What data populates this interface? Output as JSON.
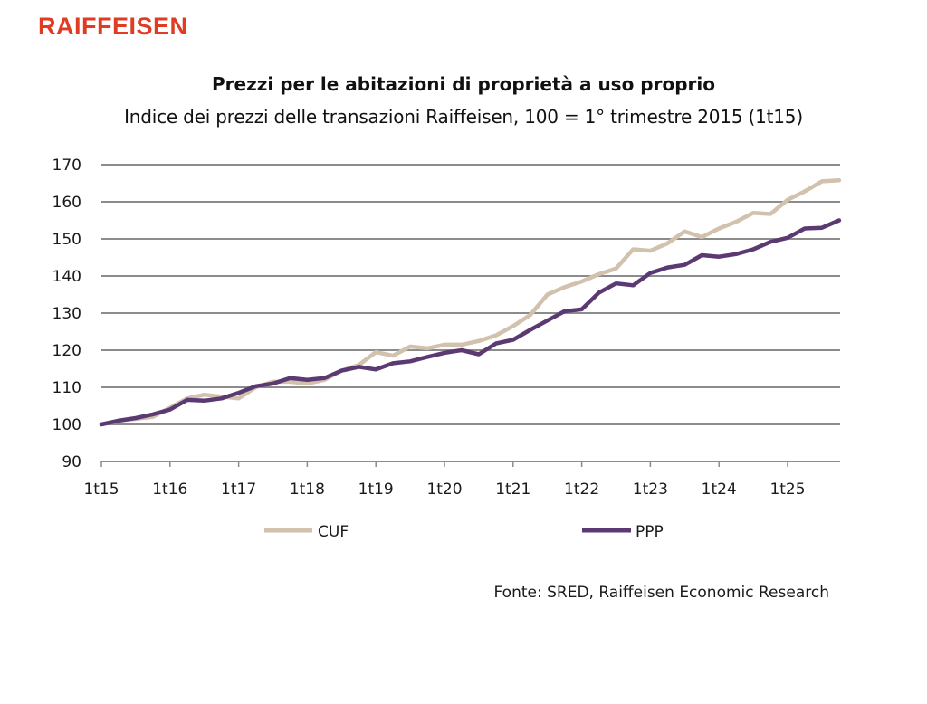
{
  "brand": {
    "logo_text": "RAIFFEISEN",
    "color": "#e03c24"
  },
  "chart_data": {
    "type": "line",
    "title": "Prezzi per le abitazioni di proprietà a uso proprio",
    "subtitle": "Indice dei prezzi delle transazioni Raiffeisen, 100 = 1° trimestre 2015 (1t15)",
    "xlabel": "",
    "ylabel": "",
    "ylim": [
      90,
      170
    ],
    "yticks": [
      "90",
      "100",
      "110",
      "120",
      "130",
      "140",
      "150",
      "160",
      "170"
    ],
    "ytick_values": [
      90,
      100,
      110,
      120,
      130,
      140,
      150,
      160,
      170
    ],
    "xticks": [
      "1t15",
      "1t16",
      "1t17",
      "1t18",
      "1t19",
      "1t20",
      "1t21",
      "1t22",
      "1t23",
      "1t24",
      "1t25"
    ],
    "xtick_index": [
      0,
      4,
      8,
      12,
      16,
      20,
      24,
      28,
      32,
      36,
      40
    ],
    "n_points": 44,
    "grid": true,
    "legend_position": "bottom",
    "series": [
      {
        "name": "CUF",
        "color": "#d1c1ad",
        "values": [
          100,
          101,
          101.5,
          102,
          104.5,
          107,
          108,
          107.5,
          107,
          110,
          111.5,
          111.5,
          111,
          112,
          114.5,
          116,
          119.5,
          118.5,
          121,
          120.5,
          121.5,
          121.5,
          122.5,
          124,
          126.5,
          129.5,
          135,
          137,
          138.5,
          140.5,
          142,
          147.2,
          146.8,
          148.8,
          152,
          150.5,
          152.8,
          154.6,
          157,
          156.7,
          160.5,
          162.8,
          165.5,
          165.8
        ]
      },
      {
        "name": "PPP",
        "color": "#5b3a73",
        "values": [
          100,
          101,
          101.7,
          102.7,
          104,
          106.6,
          106.4,
          107,
          108.5,
          110.3,
          111,
          112.5,
          112,
          112.5,
          114.5,
          115.5,
          114.8,
          116.5,
          117,
          118.2,
          119.3,
          120,
          118.9,
          121.8,
          122.8,
          125.5,
          128,
          130.5,
          131,
          135.5,
          138,
          137.5,
          140.8,
          142.3,
          143,
          145.6,
          145.2,
          145.9,
          147.2,
          149.2,
          150.3,
          152.8,
          153,
          155
        ]
      }
    ],
    "source": "Fonte: SRED, Raiffeisen Economic Research"
  }
}
